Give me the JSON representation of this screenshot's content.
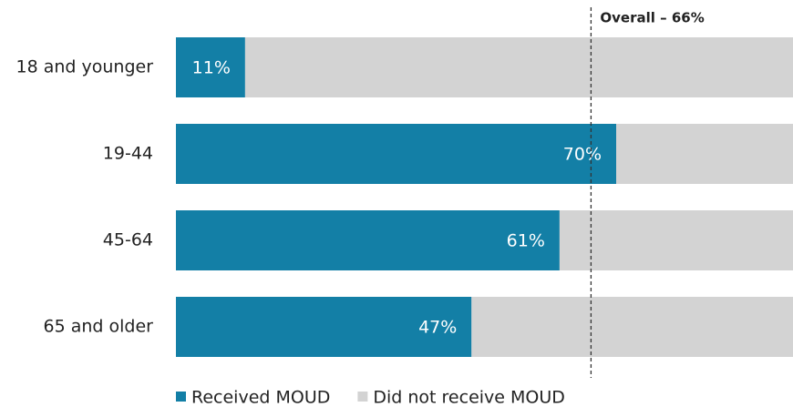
{
  "chart_data": {
    "type": "stacked-barh",
    "categories": [
      "18 and younger",
      "19-44",
      "45-64",
      "65 and older"
    ],
    "series": [
      {
        "name": "Received MOUD",
        "color": "#137fa6",
        "values": [
          11,
          70,
          61,
          47
        ],
        "value_labels": [
          "11%",
          "70%",
          "61%",
          "47%"
        ]
      },
      {
        "name": "Did not receive MOUD",
        "color": "#d3d3d3",
        "values": [
          89,
          30,
          39,
          53
        ]
      }
    ],
    "xlim": [
      0,
      100
    ],
    "annotation": {
      "text": "Overall – 66%",
      "value": 66
    }
  }
}
